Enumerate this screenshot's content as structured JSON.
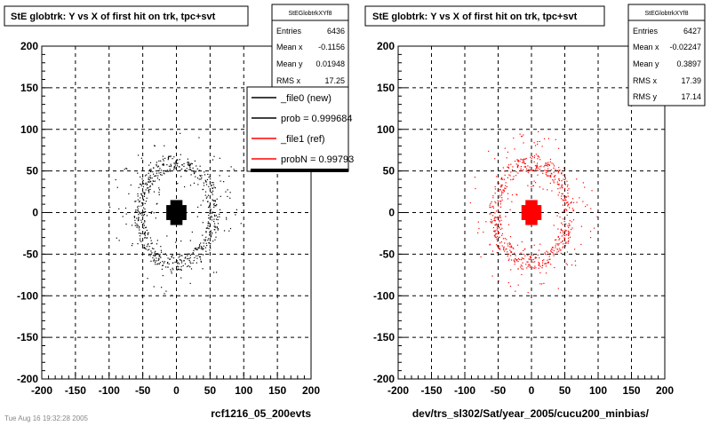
{
  "chart_data": [
    {
      "type": "scatter",
      "title": "StE globtrk: Y vs X of first hit on trk, tpc+svt",
      "xlabel": "rcf1216_05_200evts",
      "ylabel": "",
      "xlim": [
        -200,
        200
      ],
      "ylim": [
        -200,
        200
      ],
      "x_ticks": [
        "-200",
        "-150",
        "-100",
        "-50",
        "0",
        "50",
        "100",
        "150",
        "200"
      ],
      "y_ticks": [
        "200",
        "150",
        "100",
        "50",
        "0",
        "-50",
        "-100",
        "-150",
        "-200"
      ],
      "grid": true,
      "marker_color": "#000000",
      "stats": {
        "name": "StEGlobtrkXYf8",
        "rows": [
          {
            "label": "Entries",
            "value": "6436"
          },
          {
            "label": "Mean x",
            "value": "-0.1156"
          },
          {
            "label": "Mean y",
            "value": "0.01948"
          },
          {
            "label": "RMS x",
            "value": "17.25"
          }
        ]
      },
      "legend": {
        "placement": "top-right",
        "entries": [
          {
            "label": "_file0 (new)",
            "color": "#000000"
          },
          {
            "label": "prob = 0.999684",
            "color": "#000000"
          },
          {
            "label": "_file1 (ref)",
            "color": "#ff0000"
          },
          {
            "label": "probN = 0.99793",
            "color": "#ff0000"
          }
        ]
      },
      "structure": {
        "core": {
          "center": [
            0,
            0
          ],
          "half_width": 15
        },
        "ring": {
          "radius": 62
        },
        "halo_max": 100
      }
    },
    {
      "type": "scatter",
      "title": "StE globtrk: Y vs X of first hit on trk, tpc+svt",
      "xlabel": "dev/trs_sl302/Sat/year_2005/cucu200_minbias/",
      "ylabel": "",
      "xlim": [
        -200,
        200
      ],
      "ylim": [
        -200,
        200
      ],
      "x_ticks": [
        "-200",
        "-150",
        "-100",
        "-50",
        "0",
        "50",
        "100",
        "150",
        "200"
      ],
      "y_ticks": [
        "200",
        "150",
        "100",
        "50",
        "0",
        "-50",
        "-100",
        "-150",
        "-200"
      ],
      "grid": true,
      "marker_color": "#ff0000",
      "stats": {
        "name": "StEGlobtrkXYf8",
        "rows": [
          {
            "label": "Entries",
            "value": "6427"
          },
          {
            "label": "Mean x",
            "value": "-0.02247"
          },
          {
            "label": "Mean y",
            "value": "0.3897"
          },
          {
            "label": "RMS x",
            "value": "17.39"
          },
          {
            "label": "RMS y",
            "value": "17.14"
          }
        ]
      },
      "structure": {
        "core": {
          "center": [
            0,
            0
          ],
          "half_width": 15
        },
        "ring": {
          "radius": 62
        },
        "halo_max": 100
      }
    }
  ],
  "footer_text": "Tue Aug 16 19:32:28 2005"
}
